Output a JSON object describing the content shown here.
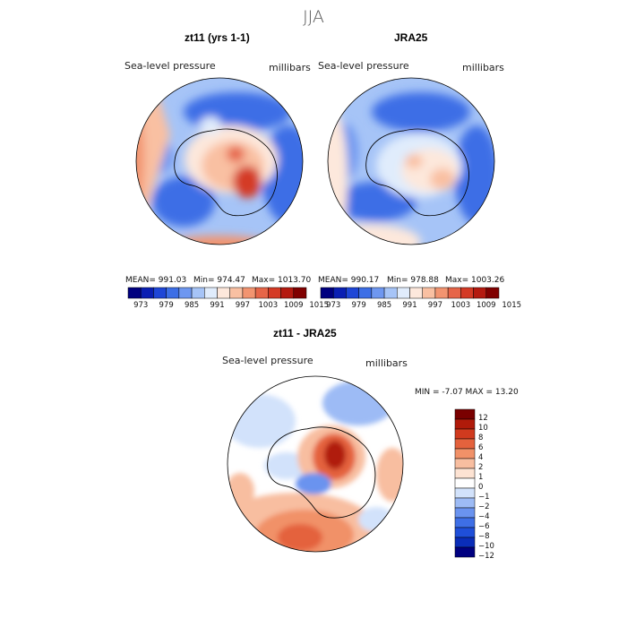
{
  "season_title": "JJA",
  "panels": {
    "model": {
      "title": "zt11 (yrs 1-1)",
      "variable": "Sea-level pressure",
      "units": "millibars",
      "mean_label": "MEAN= 991.03",
      "min_label": "Min= 974.47",
      "max_label": "Max= 1013.70"
    },
    "obs": {
      "title": "JRA25",
      "variable": "Sea-level pressure",
      "units": "millibars",
      "mean_label": "MEAN= 990.17",
      "min_label": "Min= 978.88",
      "max_label": "Max= 1003.26"
    },
    "diff": {
      "title": "zt11 - JRA25",
      "variable": "Sea-level pressure",
      "units": "millibars",
      "minmax_label": "MIN =   -7.07 MAX =   13.20"
    }
  },
  "colors": {
    "abs_palette": [
      "#00007f",
      "#0a1fb3",
      "#1e46d7",
      "#3c6ee6",
      "#6e97f0",
      "#a6c4f7",
      "#e0ecfc",
      "#fde8dc",
      "#f9c0a2",
      "#f29470",
      "#e66548",
      "#d43a25",
      "#b41a10",
      "#800000"
    ],
    "diff_palette": [
      "#000080",
      "#0a2db8",
      "#1f4fd9",
      "#3e6fe6",
      "#6a93ef",
      "#9dbbf5",
      "#d2e2fb",
      "#ffffff",
      "#fde3d3",
      "#f8bea0",
      "#f19168",
      "#e4623d",
      "#d03a1e",
      "#b01a0a",
      "#7a0000"
    ]
  },
  "chart_data": [
    {
      "type": "heatmap",
      "title": "zt11 (yrs 1-1)",
      "variable": "Sea-level pressure",
      "units": "millibars",
      "projection": "south polar stereographic",
      "mean": 991.03,
      "min": 974.47,
      "max": 1013.7,
      "colorbar_ticks": [
        "973",
        "979",
        "985",
        "991",
        "997",
        "1003",
        "1009",
        "1015"
      ]
    },
    {
      "type": "heatmap",
      "title": "JRA25",
      "variable": "Sea-level pressure",
      "units": "millibars",
      "projection": "south polar stereographic",
      "mean": 990.17,
      "min": 978.88,
      "max": 1003.26,
      "colorbar_ticks": [
        "973",
        "979",
        "985",
        "991",
        "997",
        "1003",
        "1009",
        "1015"
      ]
    },
    {
      "type": "heatmap",
      "title": "zt11 - JRA25",
      "variable": "Sea-level pressure",
      "units": "millibars",
      "projection": "south polar stereographic",
      "min": -7.07,
      "max": 13.2,
      "colorbar_ticks": [
        "12",
        "10",
        "8",
        "6",
        "4",
        "2",
        "1",
        "0",
        "−1",
        "−2",
        "−4",
        "−6",
        "−8",
        "−10",
        "−12"
      ]
    }
  ]
}
